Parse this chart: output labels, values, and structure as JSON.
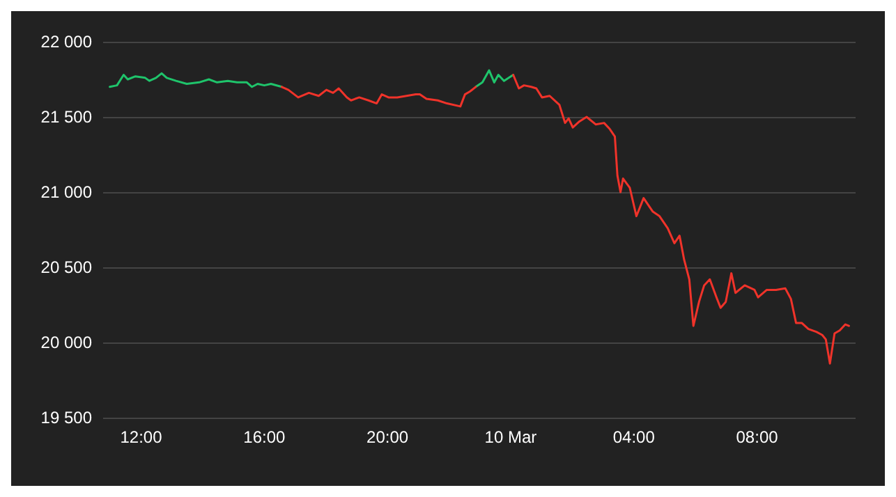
{
  "chart_data": {
    "type": "line",
    "grid": "y",
    "xlim": [
      "--03-09T10:46",
      "--03-10T11:12"
    ],
    "ylim": [
      19500,
      22000
    ],
    "xticks": [
      {
        "value": "--03-09T12:00",
        "label": "12:00"
      },
      {
        "value": "--03-09T16:00",
        "label": "16:00"
      },
      {
        "value": "--03-09T20:00",
        "label": "20:00"
      },
      {
        "value": "--03-10T00:00",
        "label": "10 Mar"
      },
      {
        "value": "--03-10T04:00",
        "label": "04:00"
      },
      {
        "value": "--03-10T08:00",
        "label": "08:00"
      }
    ],
    "yticks": [
      {
        "value": 19500,
        "label": "19 500"
      },
      {
        "value": 20000,
        "label": "20 000"
      },
      {
        "value": 20500,
        "label": "20 500"
      },
      {
        "value": 21000,
        "label": "21 000"
      },
      {
        "value": 21500,
        "label": "21 500"
      },
      {
        "value": 22000,
        "label": "22 000"
      }
    ],
    "series": [
      {
        "color": "#1fc46b",
        "x": [
          "--03-09T10:59",
          "--03-09T11:13",
          "--03-09T11:26",
          "--03-09T11:34",
          "--03-09T11:49",
          "--03-09T12:08",
          "--03-09T12:16",
          "--03-09T12:29",
          "--03-09T12:40",
          "--03-09T12:50",
          "--03-09T13:08",
          "--03-09T13:29",
          "--03-09T13:53",
          "--03-09T14:12",
          "--03-09T14:28",
          "--03-09T14:49",
          "--03-09T15:07",
          "--03-09T15:26",
          "--03-09T15:36",
          "--03-09T15:47",
          "--03-09T16:00",
          "--03-09T16:13",
          "--03-09T16:34",
          "--03-09T20:00",
          "--03-09T22:52",
          "--03-09T23:05",
          "--03-09T23:18",
          "--03-09T23:28",
          "--03-09T23:36",
          "--03-09T23:47",
          "--03-10T00:05"
        ],
        "values": [
          21700,
          21710,
          21780,
          21750,
          21770,
          21760,
          21740,
          21760,
          21790,
          21760,
          21740,
          21720,
          21730,
          21750,
          21730,
          21740,
          21730,
          21730,
          21700,
          21720,
          21710,
          21720,
          21700,
          null,
          21700,
          21730,
          21810,
          21730,
          21780,
          21740,
          21780
        ]
      },
      {
        "color": "#f0332a",
        "x": [
          "--03-09T16:34",
          "--03-09T16:47",
          "--03-09T17:06",
          "--03-09T17:27",
          "--03-09T17:46",
          "--03-09T18:01",
          "--03-09T18:14",
          "--03-09T18:25",
          "--03-09T18:41",
          "--03-09T18:49",
          "--03-09T19:05",
          "--03-09T19:23",
          "--03-09T19:39",
          "--03-09T19:49",
          "--03-09T20:02",
          "--03-09T20:19",
          "--03-09T20:37",
          "--03-09T20:55",
          "--03-09T21:03",
          "--03-09T21:16",
          "--03-09T21:38",
          "--03-09T21:56",
          "--03-09T22:22",
          "--03-09T22:31",
          "--03-09T22:41",
          "--03-09T22:52",
          "--03-09T23:30",
          "--03-10T00:05",
          "--03-10T00:16",
          "--03-10T00:26",
          "--03-10T00:40",
          "--03-10T00:50",
          "--03-10T01:01",
          "--03-10T01:16",
          "--03-10T01:35",
          "--03-10T01:46",
          "--03-10T01:53",
          "--03-10T02:01",
          "--03-10T02:14",
          "--03-10T02:28",
          "--03-10T02:46",
          "--03-10T03:02",
          "--03-10T03:13",
          "--03-10T03:23",
          "--03-10T03:28",
          "--03-10T03:34",
          "--03-10T03:39",
          "--03-10T03:52",
          "--03-10T04:05",
          "--03-10T04:19",
          "--03-10T04:37",
          "--03-10T04:50",
          "--03-10T05:06",
          "--03-10T05:19",
          "--03-10T05:29",
          "--03-10T05:38",
          "--03-10T05:48",
          "--03-10T05:56",
          "--03-10T06:07",
          "--03-10T06:17",
          "--03-10T06:28",
          "--03-10T06:41",
          "--03-10T06:49",
          "--03-10T06:59",
          "--03-10T07:10",
          "--03-10T07:18",
          "--03-10T07:36",
          "--03-10T07:55",
          "--03-10T08:02",
          "--03-10T08:19",
          "--03-10T08:37",
          "--03-10T08:55",
          "--03-10T09:06",
          "--03-10T09:16",
          "--03-10T09:27",
          "--03-10T09:40",
          "--03-10T09:56",
          "--03-10T10:07",
          "--03-10T10:14",
          "--03-10T10:22",
          "--03-10T10:31",
          "--03-10T10:41",
          "--03-10T10:52",
          "--03-10T10:59"
        ],
        "values": [
          21700,
          21680,
          21630,
          21660,
          21640,
          21680,
          21660,
          21690,
          21630,
          21610,
          21630,
          21610,
          21590,
          21650,
          21630,
          21630,
          21640,
          21650,
          21650,
          21620,
          21610,
          21590,
          21570,
          21650,
          21670,
          21700,
          null,
          21780,
          21690,
          21710,
          21700,
          21690,
          21630,
          21640,
          21580,
          21460,
          21490,
          21430,
          21470,
          21500,
          21450,
          21460,
          21420,
          21370,
          21110,
          21000,
          21090,
          21030,
          20840,
          20960,
          20870,
          20840,
          20760,
          20660,
          20710,
          20550,
          20420,
          20110,
          20270,
          20380,
          20420,
          20300,
          20230,
          20270,
          20460,
          20330,
          20380,
          20350,
          20300,
          20350,
          20350,
          20360,
          20290,
          20130,
          20130,
          20090,
          20070,
          20050,
          20020,
          19860,
          20060,
          20080,
          20120,
          20110
        ]
      }
    ]
  }
}
